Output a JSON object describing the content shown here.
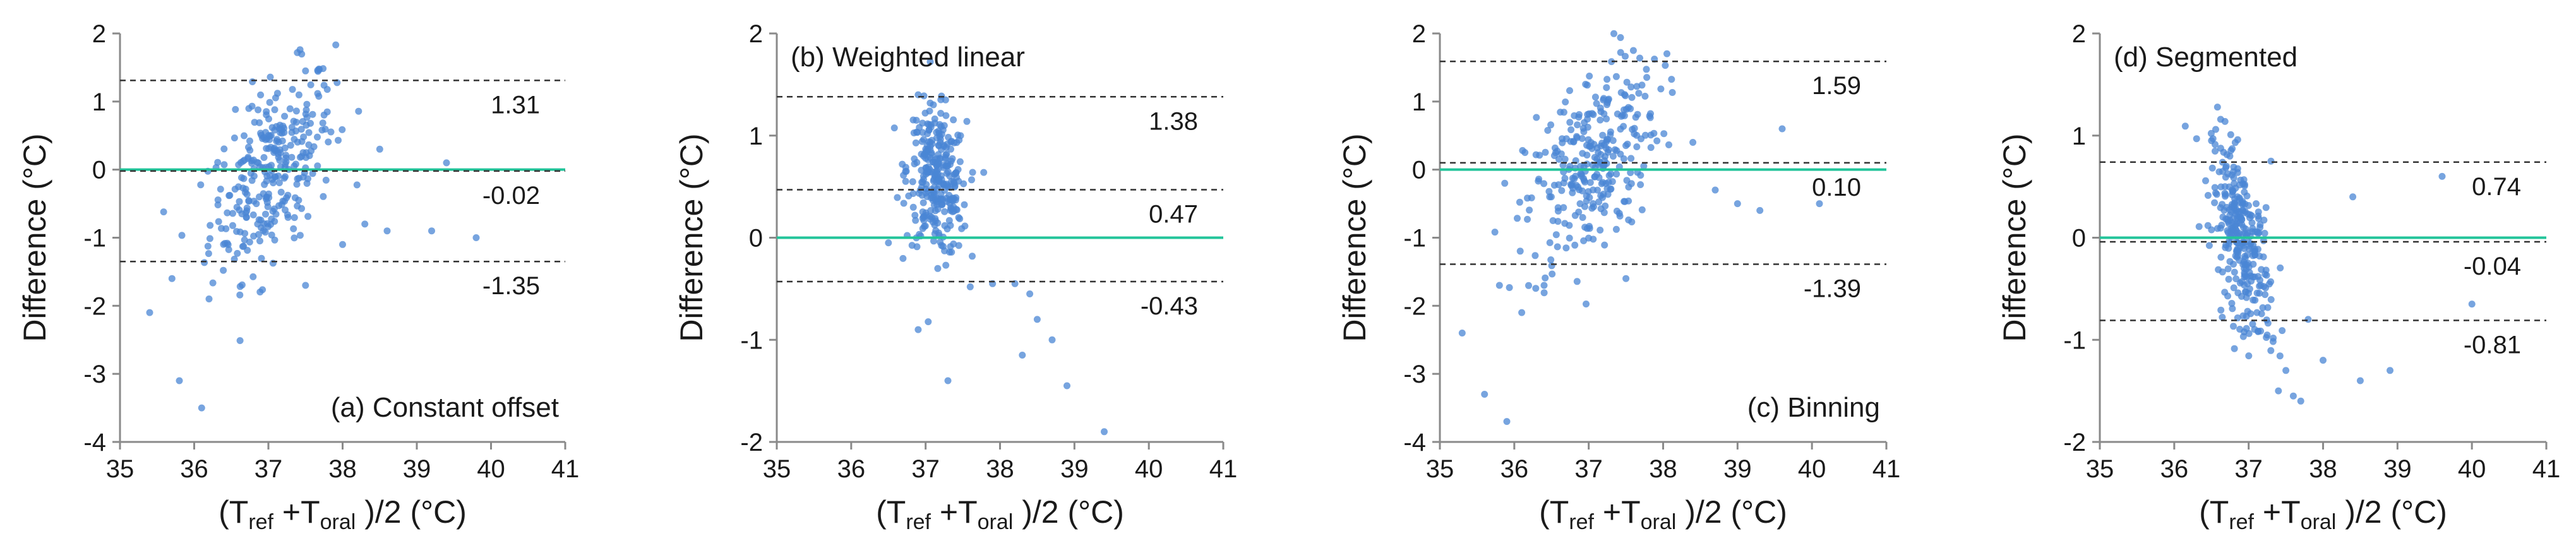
{
  "colors": {
    "points": "#4a86d4",
    "mean_line": "#22c49a",
    "loa_line": "#333333",
    "axis": "#8a8a8a"
  },
  "x_axis_label": {
    "prefix": "(T",
    "sub1": "ref",
    "mid": " +T",
    "sub2": "oral",
    "suffix": " )/2 (°C)"
  },
  "y_axis_label": "Difference (°C)",
  "chart_data": [
    {
      "type": "scatter",
      "title": "(a) Constant offset",
      "xlabel": "(Tref +Toral )/2 (°C)",
      "ylabel": "Difference (°C)",
      "xlim": [
        35,
        41
      ],
      "ylim": [
        -4,
        2
      ],
      "xticks": [
        35,
        36,
        37,
        38,
        39,
        40,
        41
      ],
      "yticks": [
        -4,
        -3,
        -2,
        -1,
        0,
        1,
        2
      ],
      "zero_line": 0,
      "lines": [
        {
          "role": "upper_loa",
          "value": 1.31,
          "label": "1.31"
        },
        {
          "role": "mean",
          "value": -0.02,
          "label": "-0.02"
        },
        {
          "role": "lower_loa",
          "value": -1.35,
          "label": "-1.35"
        }
      ],
      "label_position": "bottom-right",
      "cluster": {
        "cx": 37.05,
        "cy": -0.02,
        "sx": 0.42,
        "sy": 0.62,
        "slope": 0.9,
        "n": 300
      },
      "outliers": [
        [
          35.4,
          -2.1
        ],
        [
          35.8,
          -3.1
        ],
        [
          36.1,
          -3.5
        ],
        [
          36.2,
          -1.9
        ],
        [
          35.7,
          -1.6
        ],
        [
          37.5,
          -1.7
        ],
        [
          38.0,
          -1.1
        ],
        [
          38.3,
          -0.8
        ],
        [
          38.6,
          -0.9
        ],
        [
          39.2,
          -0.9
        ],
        [
          39.8,
          -1.0
        ],
        [
          39.4,
          0.1
        ],
        [
          38.5,
          0.3
        ],
        [
          37.5,
          1.45
        ]
      ]
    },
    {
      "type": "scatter",
      "title": "(b) Weighted linear",
      "xlabel": "(Tref +Toral )/2 (°C)",
      "ylabel": "Difference (°C)",
      "xlim": [
        35,
        41
      ],
      "ylim": [
        -2,
        2
      ],
      "xticks": [
        35,
        36,
        37,
        38,
        39,
        40,
        41
      ],
      "yticks": [
        -2,
        -1,
        0,
        1,
        2
      ],
      "zero_line": 0,
      "lines": [
        {
          "role": "upper_loa",
          "value": 1.38,
          "label": "1.38"
        },
        {
          "role": "mean",
          "value": 0.47,
          "label": "0.47"
        },
        {
          "role": "lower_loa",
          "value": -0.43,
          "label": "-0.43"
        }
      ],
      "label_position": "top-left",
      "cluster": {
        "cx": 37.15,
        "cy": 0.55,
        "sx": 0.2,
        "sy": 0.35,
        "slope": -0.3,
        "n": 300
      },
      "outliers": [
        [
          37.3,
          -1.4
        ],
        [
          36.9,
          -0.9
        ],
        [
          38.2,
          -0.45
        ],
        [
          38.5,
          -0.8
        ],
        [
          38.7,
          -1.0
        ],
        [
          38.9,
          -1.45
        ],
        [
          39.4,
          -1.9
        ],
        [
          38.4,
          -0.55
        ],
        [
          37.9,
          -0.45
        ],
        [
          36.5,
          -0.05
        ],
        [
          36.9,
          1.4
        ],
        [
          38.3,
          -1.15
        ]
      ]
    },
    {
      "type": "scatter",
      "title": "(c) Binning",
      "xlabel": "(Tref +Toral )/2 (°C)",
      "ylabel": "Difference (°C)",
      "xlim": [
        35,
        41
      ],
      "ylim": [
        -4,
        2
      ],
      "xticks": [
        35,
        36,
        37,
        38,
        39,
        40,
        41
      ],
      "yticks": [
        -4,
        -3,
        -2,
        -1,
        0,
        1,
        2
      ],
      "zero_line": 0,
      "lines": [
        {
          "role": "upper_loa",
          "value": 1.59,
          "label": "1.59"
        },
        {
          "role": "mean",
          "value": 0.1,
          "label": "0.10"
        },
        {
          "role": "lower_loa",
          "value": -1.39,
          "label": "-1.39"
        }
      ],
      "label_position": "bottom-right",
      "cluster": {
        "cx": 37.05,
        "cy": 0.1,
        "sx": 0.45,
        "sy": 0.7,
        "slope": 0.9,
        "n": 300
      },
      "outliers": [
        [
          35.3,
          -2.4
        ],
        [
          35.6,
          -3.3
        ],
        [
          35.9,
          -3.7
        ],
        [
          36.1,
          -2.1
        ],
        [
          35.8,
          -1.7
        ],
        [
          37.5,
          -1.6
        ],
        [
          38.7,
          -0.3
        ],
        [
          39.0,
          -0.5
        ],
        [
          39.3,
          -0.6
        ],
        [
          40.1,
          -0.5
        ],
        [
          39.6,
          0.6
        ],
        [
          38.4,
          0.4
        ],
        [
          37.6,
          1.75
        ],
        [
          36.4,
          -1.7
        ]
      ]
    },
    {
      "type": "scatter",
      "title": "(d) Segmented",
      "xlabel": "(Tref +Toral )/2 (°C)",
      "ylabel": "Difference (°C)",
      "xlim": [
        35,
        41
      ],
      "ylim": [
        -2,
        2
      ],
      "xticks": [
        35,
        36,
        37,
        38,
        39,
        40,
        41
      ],
      "yticks": [
        -2,
        -1,
        0,
        1,
        2
      ],
      "zero_line": 0,
      "lines": [
        {
          "role": "upper_loa",
          "value": 0.74,
          "label": "0.74"
        },
        {
          "role": "mean",
          "value": -0.04,
          "label": "-0.04"
        },
        {
          "role": "lower_loa",
          "value": -0.81,
          "label": "-0.81"
        }
      ],
      "label_position": "top-left",
      "cluster": {
        "cx": 36.9,
        "cy": -0.02,
        "sx": 0.2,
        "sy": 0.38,
        "slope": -1.4,
        "n": 300
      },
      "outliers": [
        [
          36.5,
          0.95
        ],
        [
          36.7,
          0.7
        ],
        [
          37.4,
          -1.5
        ],
        [
          37.5,
          -1.3
        ],
        [
          37.7,
          -1.6
        ],
        [
          38.0,
          -1.2
        ],
        [
          38.5,
          -1.4
        ],
        [
          38.9,
          -1.3
        ],
        [
          38.4,
          0.4
        ],
        [
          39.6,
          0.6
        ],
        [
          40.0,
          -0.65
        ],
        [
          37.8,
          -0.8
        ],
        [
          37.3,
          0.75
        ],
        [
          37.6,
          -1.55
        ]
      ]
    }
  ]
}
